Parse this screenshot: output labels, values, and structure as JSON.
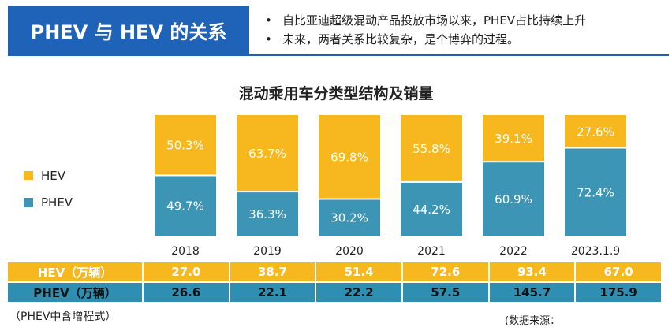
{
  "header": {
    "title": "PHEV 与 HEV 的关系",
    "bullets": [
      "自比亚迪超级混动产品投放市场以来，PHEV占比持续上升",
      "未来，两者关系比较复杂，是个博弈的过程。"
    ],
    "accent_color": "#1f63b8"
  },
  "chart_data": {
    "type": "bar",
    "stacked": true,
    "title": "混动乘用车分类型结构及销量",
    "categories": [
      "2018",
      "2019",
      "2020",
      "2021",
      "2022",
      "2023.1.9"
    ],
    "series": [
      {
        "name": "HEV",
        "color": "#f7b71e",
        "values": [
          50.3,
          63.7,
          69.8,
          55.8,
          39.1,
          27.6
        ],
        "labels": [
          "50.3%",
          "63.7%",
          "69.8%",
          "55.8%",
          "39.1%",
          "27.6%"
        ]
      },
      {
        "name": "PHEV",
        "color": "#3d95b6",
        "values": [
          49.7,
          36.3,
          30.2,
          44.2,
          60.9,
          72.4
        ],
        "labels": [
          "49.7%",
          "36.3%",
          "30.2%",
          "44.2%",
          "60.9%",
          "72.4%"
        ]
      }
    ],
    "ylim": [
      0,
      100
    ],
    "legend": [
      "HEV",
      "PHEV"
    ]
  },
  "table": {
    "rows": [
      {
        "label": "HEV（万辆）",
        "values": [
          "27.0",
          "38.7",
          "51.4",
          "72.6",
          "93.4",
          "67.0"
        ]
      },
      {
        "label": "PHEV（万辆）",
        "values": [
          "26.6",
          "22.1",
          "22.2",
          "57.5",
          "145.7",
          "175.9"
        ]
      }
    ]
  },
  "footer": {
    "note": "（PHEV中含增程式）",
    "source": "(数据来源："
  }
}
